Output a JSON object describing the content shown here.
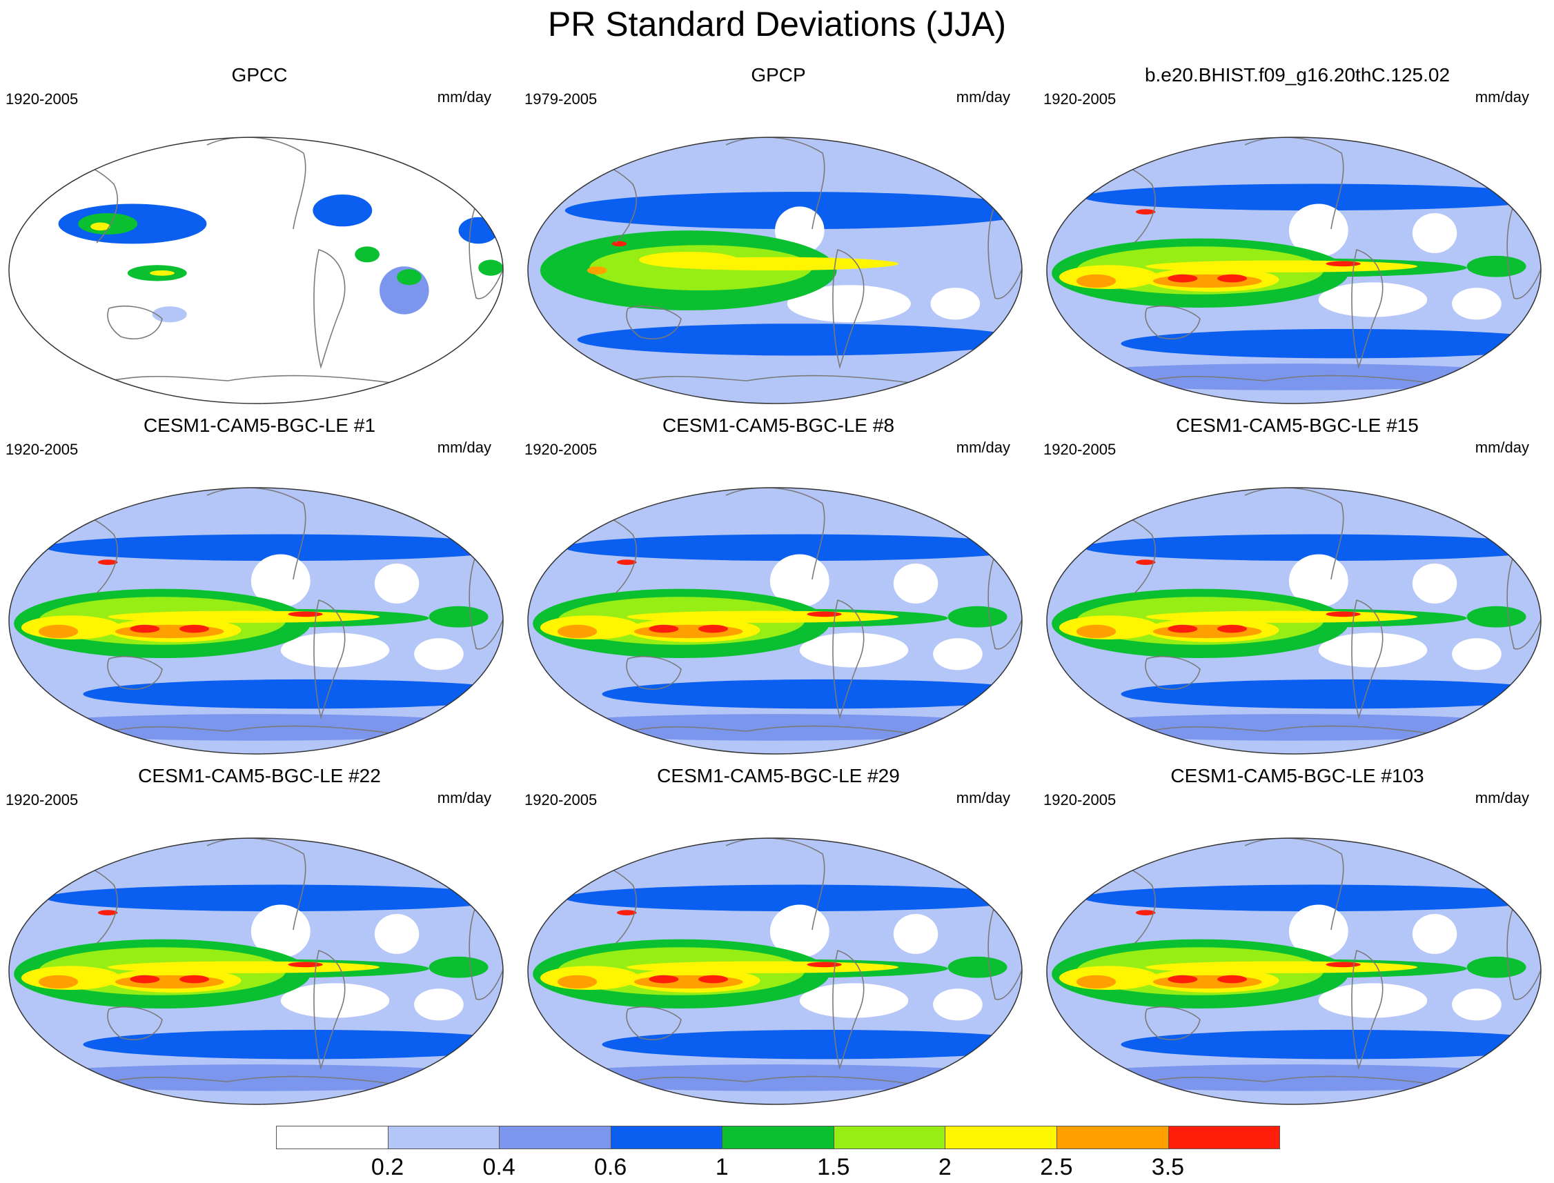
{
  "title": "PR Standard Deviations (JJA)",
  "panels": [
    {
      "title": "GPCC",
      "period": "1920-2005",
      "units": "mm/day",
      "pattern": "obs_land"
    },
    {
      "title": "GPCP",
      "period": "1979-2005",
      "units": "mm/day",
      "pattern": "obs_global"
    },
    {
      "title": "b.e20.BHIST.f09_g16.20thC.125.02",
      "period": "1920-2005",
      "units": "mm/day",
      "pattern": "model"
    },
    {
      "title": "CESM1-CAM5-BGC-LE #1",
      "period": "1920-2005",
      "units": "mm/day",
      "pattern": "model"
    },
    {
      "title": "CESM1-CAM5-BGC-LE #8",
      "period": "1920-2005",
      "units": "mm/day",
      "pattern": "model"
    },
    {
      "title": "CESM1-CAM5-BGC-LE #15",
      "period": "1920-2005",
      "units": "mm/day",
      "pattern": "model"
    },
    {
      "title": "CESM1-CAM5-BGC-LE #22",
      "period": "1920-2005",
      "units": "mm/day",
      "pattern": "model"
    },
    {
      "title": "CESM1-CAM5-BGC-LE #29",
      "period": "1920-2005",
      "units": "mm/day",
      "pattern": "model"
    },
    {
      "title": "CESM1-CAM5-BGC-LE #103",
      "period": "1920-2005",
      "units": "mm/day",
      "pattern": "model"
    }
  ],
  "colorbar": {
    "labels": [
      "0.2",
      "0.4",
      "0.6",
      "1",
      "1.5",
      "2",
      "2.5",
      "3.5"
    ],
    "colors": [
      "#ffffff",
      "#b4c6f7",
      "#7c96ee",
      "#0a5ef0",
      "#0ac030",
      "#96ee14",
      "#fff500",
      "#ffa000",
      "#ff1e0a"
    ]
  }
}
